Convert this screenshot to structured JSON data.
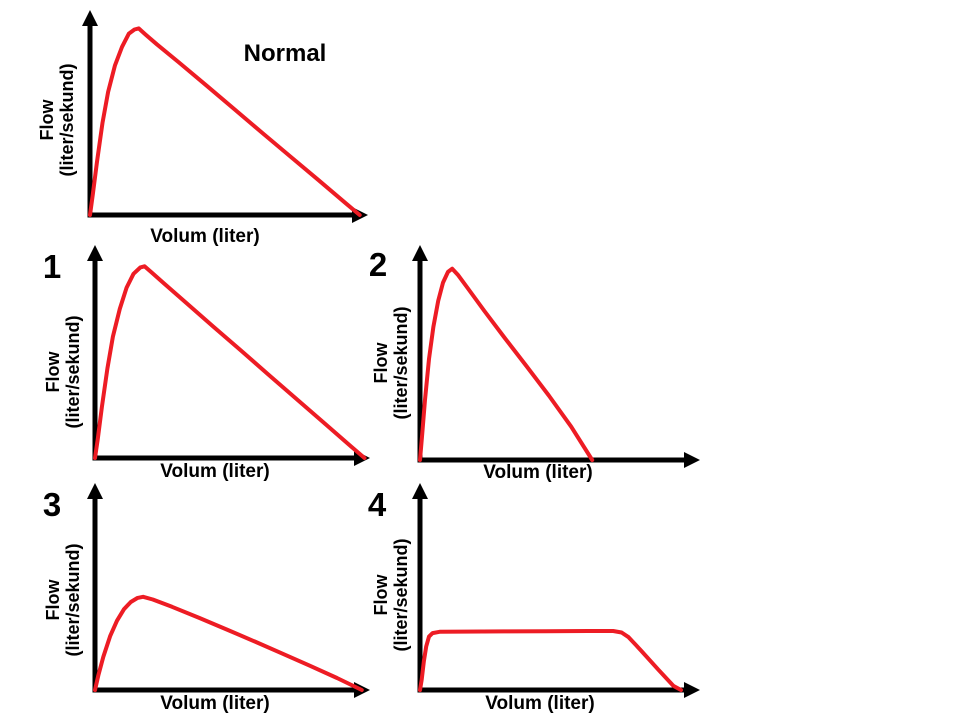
{
  "colors": {
    "curve_red": "#ed1c24",
    "axis_black": "#000000",
    "background": "#ffffff"
  },
  "chart_data": [
    {
      "type": "line",
      "title": "Normal",
      "xlabel": "Volum (liter)",
      "ylabel": "Flow (liter/sekund)",
      "ylabel_lines": [
        "Flow",
        "(liter/sekund)"
      ],
      "curve_color": "#ed1c24",
      "axes": {
        "tick_labels": "none",
        "x_unit": "liter",
        "y_unit": "liter/sekund",
        "coords": "normalized 0-1 fraction of drawn axis length"
      },
      "points": [
        [
          0,
          0
        ],
        [
          0.01,
          0.1
        ],
        [
          0.025,
          0.26
        ],
        [
          0.045,
          0.45
        ],
        [
          0.065,
          0.6
        ],
        [
          0.09,
          0.73
        ],
        [
          0.115,
          0.82
        ],
        [
          0.14,
          0.885
        ],
        [
          0.16,
          0.905
        ],
        [
          0.175,
          0.91
        ],
        [
          0.2,
          0.88
        ],
        [
          0.24,
          0.833
        ],
        [
          0.32,
          0.744
        ],
        [
          0.42,
          0.63
        ],
        [
          0.52,
          0.515
        ],
        [
          0.62,
          0.4
        ],
        [
          0.72,
          0.286
        ],
        [
          0.82,
          0.172
        ],
        [
          0.92,
          0.057
        ],
        [
          0.97,
          0
        ]
      ]
    },
    {
      "type": "line",
      "title": "1",
      "xlabel": "Volum (liter)",
      "ylabel": "Flow (liter/sekund)",
      "ylabel_lines": [
        "Flow",
        "(liter/sekund)"
      ],
      "curve_color": "#ed1c24",
      "axes": {
        "tick_labels": "none",
        "x_unit": "liter",
        "y_unit": "liter/sekund",
        "coords": "normalized 0-1 fraction of drawn axis length"
      },
      "points": [
        [
          0,
          0
        ],
        [
          0.01,
          0.09
        ],
        [
          0.025,
          0.24
        ],
        [
          0.045,
          0.42
        ],
        [
          0.065,
          0.57
        ],
        [
          0.09,
          0.7
        ],
        [
          0.115,
          0.8
        ],
        [
          0.14,
          0.865
        ],
        [
          0.165,
          0.895
        ],
        [
          0.18,
          0.9
        ],
        [
          0.205,
          0.872
        ],
        [
          0.25,
          0.82
        ],
        [
          0.33,
          0.73
        ],
        [
          0.43,
          0.617
        ],
        [
          0.53,
          0.505
        ],
        [
          0.63,
          0.392
        ],
        [
          0.73,
          0.28
        ],
        [
          0.83,
          0.168
        ],
        [
          0.93,
          0.055
        ],
        [
          0.98,
          0
        ]
      ]
    },
    {
      "type": "line",
      "title": "2",
      "xlabel": "Volum (liter)",
      "ylabel": "Flow (liter/sekund)",
      "ylabel_lines": [
        "Flow",
        "(liter/sekund)"
      ],
      "curve_color": "#ed1c24",
      "axes": {
        "tick_labels": "none",
        "x_unit": "liter",
        "y_unit": "liter/sekund",
        "coords": "normalized 0-1 fraction of drawn axis length"
      },
      "points": [
        [
          0,
          0
        ],
        [
          0.008,
          0.12
        ],
        [
          0.018,
          0.28
        ],
        [
          0.032,
          0.47
        ],
        [
          0.048,
          0.62
        ],
        [
          0.065,
          0.74
        ],
        [
          0.082,
          0.825
        ],
        [
          0.1,
          0.875
        ],
        [
          0.115,
          0.89
        ],
        [
          0.135,
          0.862
        ],
        [
          0.17,
          0.8
        ],
        [
          0.23,
          0.693
        ],
        [
          0.3,
          0.572
        ],
        [
          0.38,
          0.437
        ],
        [
          0.46,
          0.3
        ],
        [
          0.54,
          0.155
        ],
        [
          0.615,
          0
        ]
      ]
    },
    {
      "type": "line",
      "title": "3",
      "xlabel": "Volum (liter)",
      "ylabel": "Flow (liter/sekund)",
      "ylabel_lines": [
        "Flow",
        "(liter/sekund)"
      ],
      "curve_color": "#ed1c24",
      "axes": {
        "tick_labels": "none",
        "x_unit": "liter",
        "y_unit": "liter/sekund",
        "coords": "normalized 0-1 fraction of drawn axis length"
      },
      "points": [
        [
          0,
          0
        ],
        [
          0.012,
          0.07
        ],
        [
          0.03,
          0.16
        ],
        [
          0.055,
          0.26
        ],
        [
          0.08,
          0.335
        ],
        [
          0.105,
          0.39
        ],
        [
          0.13,
          0.425
        ],
        [
          0.155,
          0.445
        ],
        [
          0.175,
          0.45
        ],
        [
          0.21,
          0.437
        ],
        [
          0.28,
          0.402
        ],
        [
          0.38,
          0.348
        ],
        [
          0.48,
          0.292
        ],
        [
          0.58,
          0.235
        ],
        [
          0.68,
          0.177
        ],
        [
          0.78,
          0.118
        ],
        [
          0.88,
          0.058
        ],
        [
          0.97,
          0
        ]
      ]
    },
    {
      "type": "line",
      "title": "4",
      "xlabel": "Volum (liter)",
      "ylabel": "Flow (liter/sekund)",
      "ylabel_lines": [
        "Flow",
        "(liter/sekund)"
      ],
      "curve_color": "#ed1c24",
      "axes": {
        "tick_labels": "none",
        "x_unit": "liter",
        "y_unit": "liter/sekund",
        "coords": "normalized 0-1 fraction of drawn axis length"
      },
      "points": [
        [
          0,
          0
        ],
        [
          0.006,
          0.05
        ],
        [
          0.014,
          0.14
        ],
        [
          0.022,
          0.21
        ],
        [
          0.032,
          0.258
        ],
        [
          0.045,
          0.275
        ],
        [
          0.07,
          0.281
        ],
        [
          0.15,
          0.282
        ],
        [
          0.3,
          0.283
        ],
        [
          0.45,
          0.284
        ],
        [
          0.6,
          0.285
        ],
        [
          0.69,
          0.285
        ],
        [
          0.72,
          0.278
        ],
        [
          0.745,
          0.255
        ],
        [
          0.79,
          0.19
        ],
        [
          0.85,
          0.1
        ],
        [
          0.905,
          0.02
        ],
        [
          0.932,
          0
        ]
      ]
    }
  ]
}
